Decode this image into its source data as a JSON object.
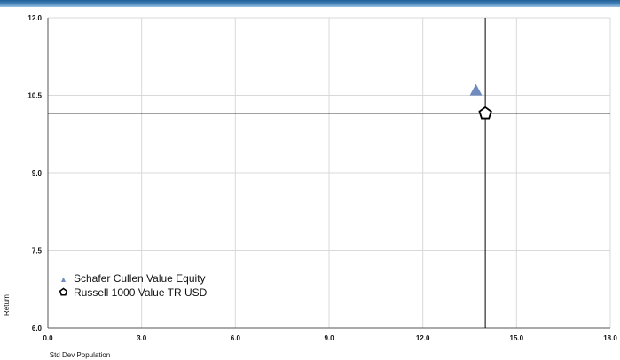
{
  "chart_data": {
    "type": "scatter",
    "xlabel": "Std Dev Population",
    "ylabel": "Return",
    "xlim": [
      0.0,
      18.0
    ],
    "ylim": [
      6.0,
      12.0
    ],
    "x_ticks": [
      "0.0",
      "3.0",
      "6.0",
      "9.0",
      "12.0",
      "15.0",
      "18.0"
    ],
    "y_ticks": [
      "6.0",
      "7.5",
      "9.0",
      "10.5",
      "12.0"
    ],
    "grid": true,
    "legend_position": "bottom-left",
    "series": [
      {
        "name": "Schafer Cullen Value Equity",
        "x": 13.7,
        "y": 10.6,
        "marker": "triangle",
        "color": "#6f8bbf"
      },
      {
        "name": "Russell 1000 Value TR USD",
        "x": 14.0,
        "y": 10.15,
        "marker": "pentagon",
        "color": "#000000"
      }
    ],
    "reference_lines": {
      "x": 14.0,
      "y": 10.15
    }
  }
}
